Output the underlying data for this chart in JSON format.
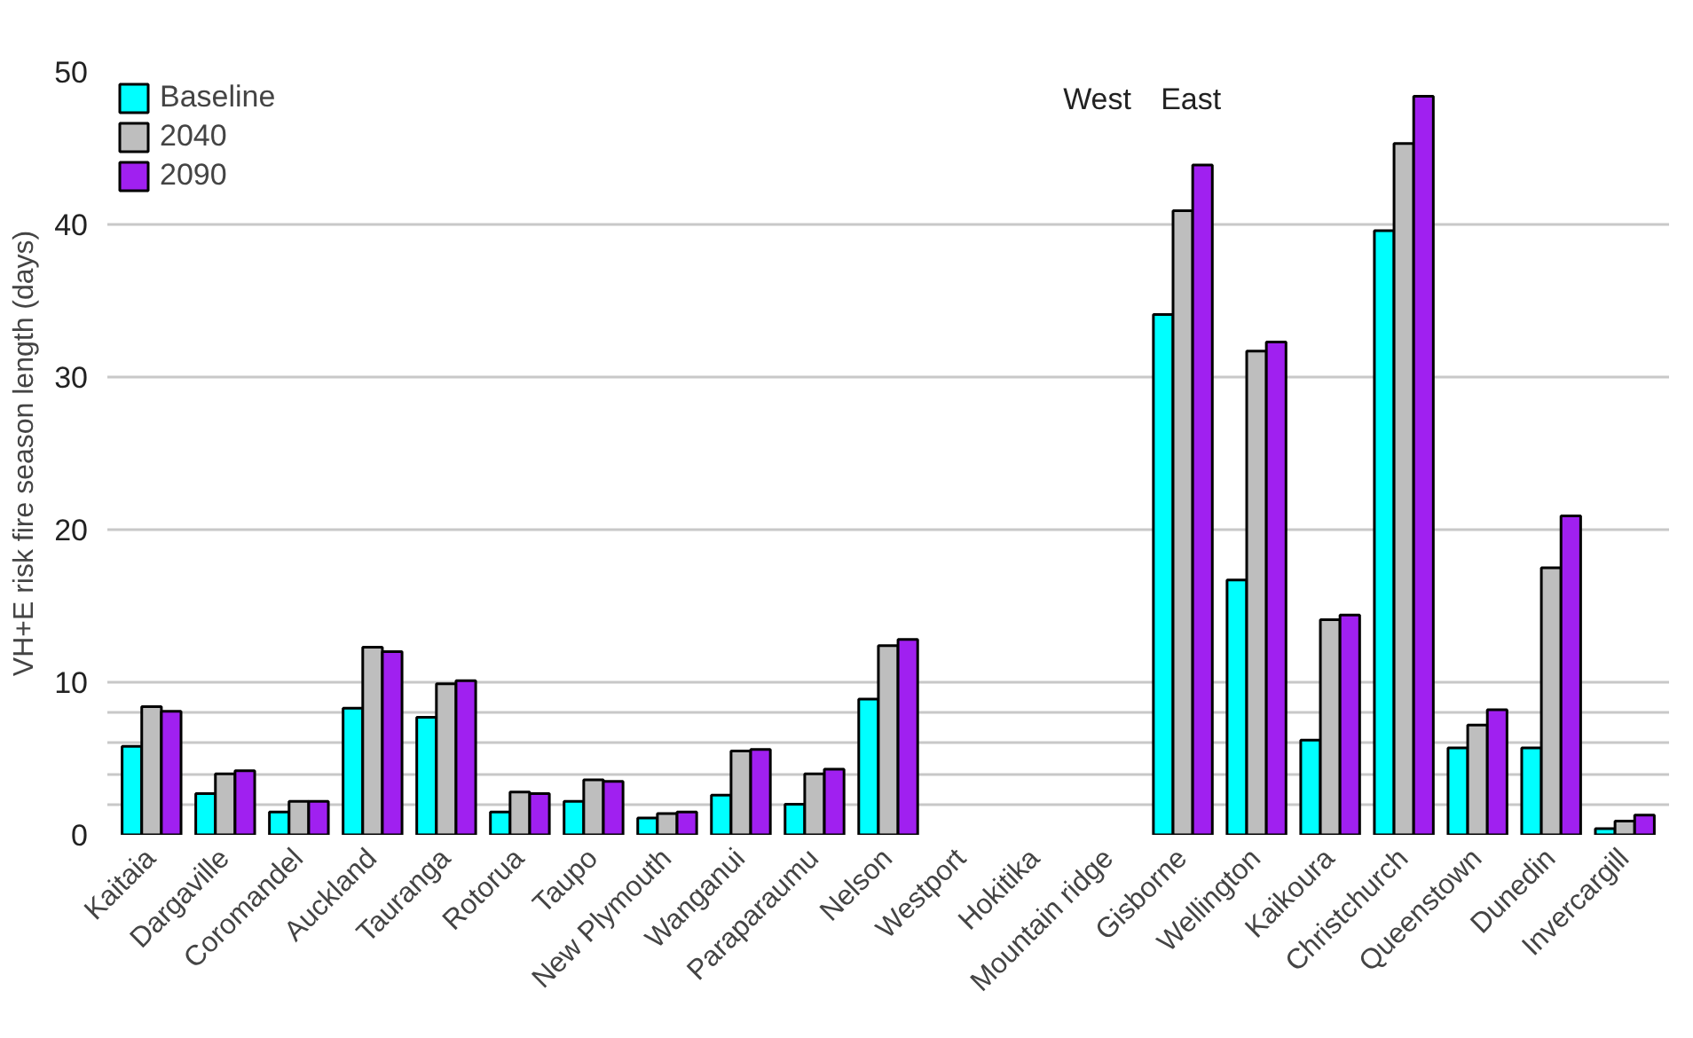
{
  "chart_data": {
    "type": "bar",
    "ylabel": "VH+E risk fire season length (days)",
    "categories": [
      "Kaitaia",
      "Dargaville",
      "Coromandel",
      "Auckland",
      "Tauranga",
      "Rotorua",
      "Taupo",
      "New Plymouth",
      "Wanganui",
      "Paraparaumu",
      "Nelson",
      "Westport",
      "Hokitika",
      "Mountain ridge",
      "Gisborne",
      "Wellington",
      "Kaikoura",
      "Christchurch",
      "Queenstown",
      "Dunedin",
      "Invercargill"
    ],
    "series": [
      {
        "name": "Baseline",
        "color": "#00ffff",
        "values": [
          5.8,
          2.7,
          1.5,
          8.3,
          7.7,
          1.5,
          2.2,
          1.1,
          2.6,
          2.0,
          8.9,
          null,
          null,
          null,
          34.1,
          16.7,
          6.2,
          39.6,
          5.7,
          5.7,
          0.4
        ]
      },
      {
        "name": "2040",
        "color": "#bebebe",
        "values": [
          8.4,
          4.0,
          2.2,
          12.3,
          9.9,
          2.8,
          3.6,
          1.4,
          5.5,
          4.0,
          12.4,
          null,
          null,
          null,
          40.9,
          31.7,
          14.1,
          45.3,
          7.2,
          17.5,
          0.9
        ]
      },
      {
        "name": "2090",
        "color": "#a020f0",
        "values": [
          8.1,
          4.2,
          2.2,
          12.0,
          10.1,
          2.7,
          3.5,
          1.5,
          5.6,
          4.3,
          12.8,
          null,
          null,
          null,
          43.9,
          32.3,
          14.4,
          48.4,
          8.2,
          20.9,
          1.3
        ]
      }
    ],
    "ylim": [
      0,
      50
    ],
    "yticks": [
      0,
      {
        "value": 2,
        "label": null
      },
      {
        "value": 4,
        "label": null
      },
      {
        "value": 6,
        "label": null
      },
      {
        "value": 8,
        "label": null
      },
      10,
      20,
      30,
      40,
      50
    ],
    "grid": "y",
    "legend": "top left",
    "annotations": [
      "West",
      "East"
    ]
  }
}
